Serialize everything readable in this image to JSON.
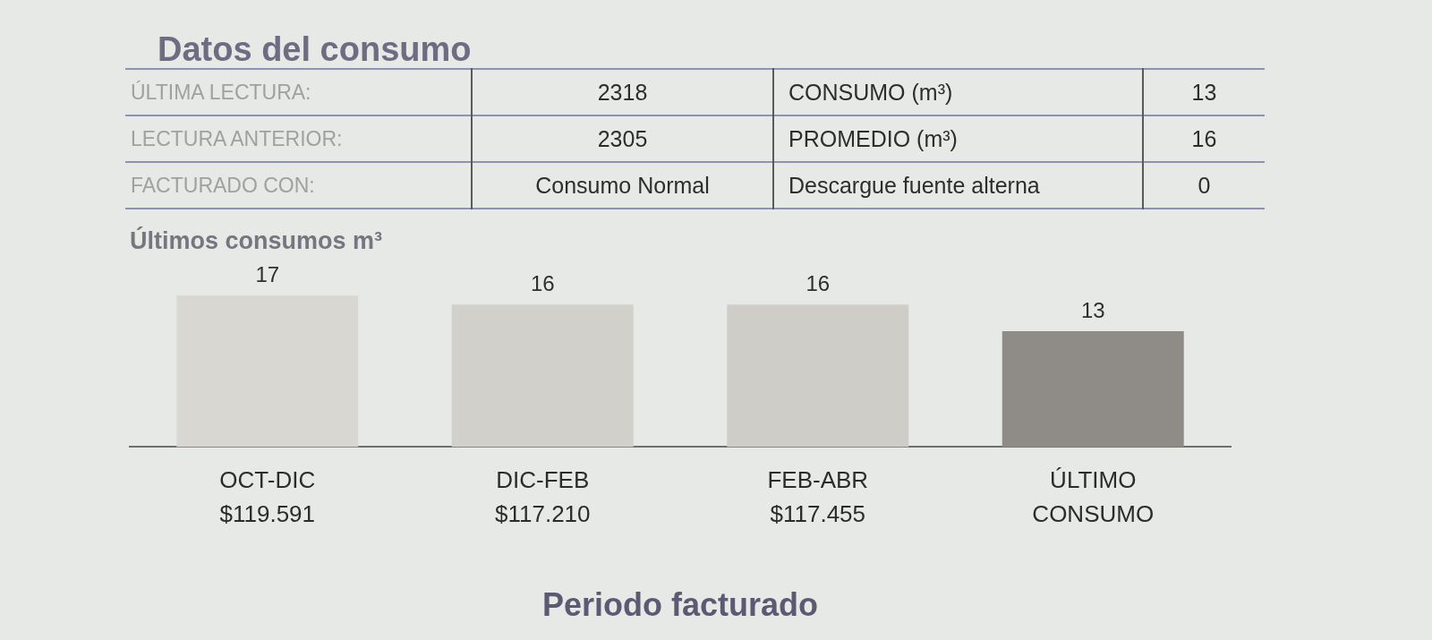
{
  "chart_data": [
    {
      "type": "other",
      "title": "Datos del consumo",
      "annotations": [
        "ÚLTIMA LECTURA:",
        "2318",
        "CONSUMO (m³)",
        "13",
        "LECTURA ANTERIOR:",
        "2305",
        "PROMEDIO (m³)",
        "16",
        "FACTURADO CON:",
        "Consumo Normal",
        "Descargue fuente alterna",
        "0"
      ]
    },
    {
      "type": "bar",
      "title": "Últimos consumos m³",
      "categories": [
        "OCT-DIC\n$119.591",
        "DIC-FEB\n$117.210",
        "FEB-ABR\n$117.455",
        "ÚLTIMO\nCONSUMO"
      ],
      "values": [
        17,
        16,
        16,
        13
      ],
      "colors": [
        "#d9d7d2",
        "#d2d0cb",
        "#cfcdc8",
        "#8f8c88"
      ],
      "data_labels": true,
      "xlabel": "Periodo facturado",
      "tick_labels": "x",
      "grid": false,
      "legend": false
    }
  ]
}
